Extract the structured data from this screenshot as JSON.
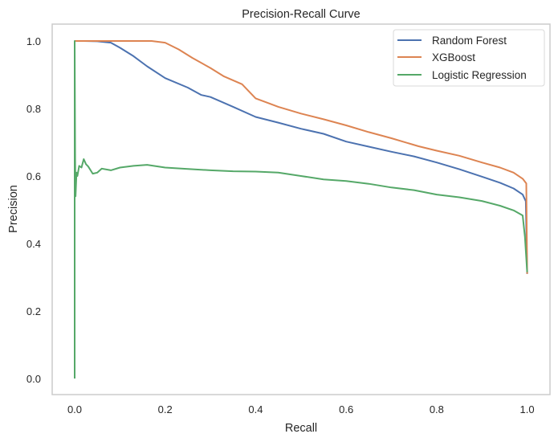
{
  "chart_data": {
    "type": "line",
    "title": "Precision-Recall Curve",
    "xlabel": "Recall",
    "ylabel": "Precision",
    "xlim": [
      -0.05,
      1.05
    ],
    "ylim": [
      -0.05,
      1.05
    ],
    "xticks": [
      0.0,
      0.2,
      0.4,
      0.6,
      0.8,
      1.0
    ],
    "xtick_labels": [
      "0.0",
      "0.2",
      "0.4",
      "0.6",
      "0.8",
      "1.0"
    ],
    "yticks": [
      0.0,
      0.2,
      0.4,
      0.6,
      0.8,
      1.0
    ],
    "ytick_labels": [
      "0.0",
      "0.2",
      "0.4",
      "0.6",
      "0.8",
      "1.0"
    ],
    "grid": false,
    "legend_position": "top-right",
    "series": [
      {
        "name": "Random Forest",
        "color": "#4c72b0",
        "x": [
          0.0,
          0.02,
          0.05,
          0.08,
          0.1,
          0.13,
          0.16,
          0.2,
          0.25,
          0.28,
          0.3,
          0.35,
          0.4,
          0.45,
          0.5,
          0.55,
          0.6,
          0.65,
          0.7,
          0.75,
          0.8,
          0.85,
          0.9,
          0.94,
          0.97,
          0.99,
          0.997,
          1.0
        ],
        "y": [
          1.0,
          1.0,
          0.999,
          0.995,
          0.98,
          0.955,
          0.925,
          0.89,
          0.862,
          0.84,
          0.834,
          0.805,
          0.775,
          0.758,
          0.74,
          0.725,
          0.702,
          0.687,
          0.672,
          0.658,
          0.64,
          0.62,
          0.598,
          0.58,
          0.563,
          0.545,
          0.525,
          0.31
        ]
      },
      {
        "name": "XGBoost",
        "color": "#dd8452",
        "x": [
          0.0,
          0.05,
          0.1,
          0.15,
          0.17,
          0.2,
          0.23,
          0.26,
          0.3,
          0.33,
          0.37,
          0.4,
          0.45,
          0.5,
          0.55,
          0.6,
          0.65,
          0.7,
          0.76,
          0.8,
          0.85,
          0.9,
          0.94,
          0.97,
          0.99,
          0.998,
          1.0
        ],
        "y": [
          1.0,
          1.0,
          1.0,
          1.0,
          1.0,
          0.995,
          0.975,
          0.95,
          0.92,
          0.895,
          0.872,
          0.83,
          0.805,
          0.785,
          0.768,
          0.75,
          0.73,
          0.712,
          0.688,
          0.675,
          0.66,
          0.64,
          0.625,
          0.61,
          0.592,
          0.578,
          0.31
        ]
      },
      {
        "name": "Logistic Regression",
        "color": "#55a868",
        "x": [
          0.0,
          0.0,
          0.001,
          0.002,
          0.004,
          0.006,
          0.01,
          0.015,
          0.02,
          0.025,
          0.03,
          0.04,
          0.05,
          0.06,
          0.08,
          0.1,
          0.13,
          0.16,
          0.2,
          0.25,
          0.3,
          0.35,
          0.4,
          0.45,
          0.5,
          0.55,
          0.6,
          0.65,
          0.7,
          0.75,
          0.8,
          0.85,
          0.9,
          0.94,
          0.97,
          0.99,
          0.995,
          1.0
        ],
        "y": [
          0.0,
          1.0,
          0.65,
          0.54,
          0.61,
          0.6,
          0.63,
          0.625,
          0.65,
          0.635,
          0.628,
          0.607,
          0.61,
          0.622,
          0.617,
          0.625,
          0.63,
          0.633,
          0.625,
          0.621,
          0.617,
          0.614,
          0.613,
          0.61,
          0.6,
          0.59,
          0.585,
          0.577,
          0.566,
          0.558,
          0.545,
          0.537,
          0.526,
          0.512,
          0.498,
          0.483,
          0.42,
          0.315
        ]
      }
    ]
  }
}
